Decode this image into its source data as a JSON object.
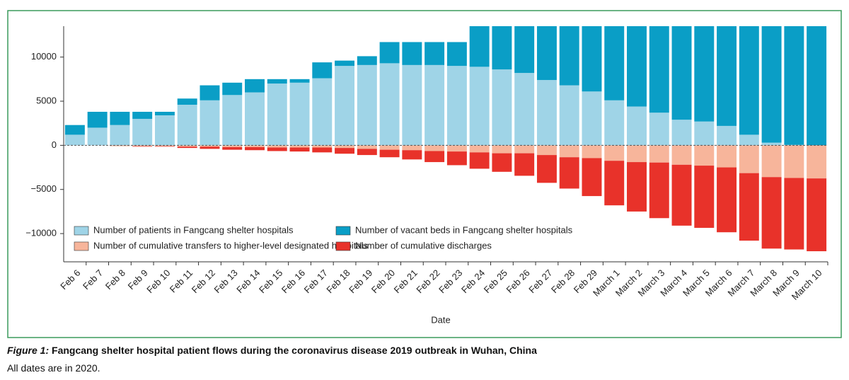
{
  "chart_data": {
    "type": "bar",
    "stacked": true,
    "x_label": "Date",
    "categories": [
      "Feb 6",
      "Feb 7",
      "Feb 8",
      "Feb 9",
      "Feb 10",
      "Feb 11",
      "Feb 12",
      "Feb 13",
      "Feb 14",
      "Feb 15",
      "Feb 16",
      "Feb 17",
      "Feb 18",
      "Feb 19",
      "Feb 20",
      "Feb 21",
      "Feb 22",
      "Feb 23",
      "Feb 24",
      "Feb 25",
      "Feb 26",
      "Feb 27",
      "Feb 28",
      "Feb 29",
      "March 1",
      "March 2",
      "March 3",
      "March 4",
      "March 5",
      "March 6",
      "March 7",
      "March 8",
      "March 9",
      "March 10"
    ],
    "series": [
      {
        "name": "Number of patients in Fangcang shelter hospitals",
        "color": "#9fd4e7",
        "values": [
          1200,
          2000,
          2300,
          3000,
          3400,
          4600,
          5100,
          5700,
          6000,
          7000,
          7100,
          7600,
          9000,
          9100,
          9300,
          9100,
          9100,
          9000,
          8900,
          8600,
          8200,
          7400,
          6800,
          6100,
          5100,
          4400,
          3700,
          2900,
          2700,
          2200,
          1200,
          300,
          50,
          0
        ]
      },
      {
        "name": "Number of vacant beds in Fangcang shelter hospitals",
        "color": "#0a9ec6",
        "values": [
          1100,
          1800,
          1500,
          800,
          400,
          700,
          1700,
          1400,
          1500,
          500,
          400,
          1800,
          600,
          1000,
          2400,
          2600,
          2600,
          2700,
          4600,
          4900,
          5300,
          6100,
          6700,
          7400,
          8400,
          9100,
          9800,
          10600,
          10800,
          11300,
          12300,
          13200,
          13450,
          13500
        ]
      },
      {
        "name": "Number of cumulative transfers to higher-level designated hospitals",
        "color": "#f7b59b",
        "values": [
          0,
          0,
          -100,
          -100,
          -100,
          -150,
          -150,
          -200,
          -200,
          -250,
          -250,
          -250,
          -300,
          -400,
          -500,
          -550,
          -650,
          -700,
          -800,
          -900,
          -900,
          -1100,
          -1350,
          -1450,
          -1750,
          -1900,
          -1950,
          -2200,
          -2300,
          -2500,
          -3150,
          -3600,
          -3700,
          -3750
        ]
      },
      {
        "name": "Number of cumulative discharges",
        "color": "#e8322a",
        "values": [
          0,
          0,
          0,
          -50,
          -50,
          -150,
          -250,
          -300,
          -350,
          -400,
          -450,
          -550,
          -650,
          -700,
          -850,
          -1050,
          -1250,
          -1550,
          -1850,
          -2100,
          -2550,
          -3150,
          -3550,
          -4300,
          -5050,
          -5600,
          -6300,
          -6900,
          -7050,
          -7350,
          -7650,
          -8100,
          -8100,
          -8250
        ]
      }
    ],
    "ylim": [
      -13200,
      13500
    ],
    "yticks": [
      {
        "value": -10000,
        "label": "−10000"
      },
      {
        "value": -5000,
        "label": "−5000"
      },
      0,
      5000,
      10000
    ],
    "caption_label": "Figure 1:",
    "caption": "Fangcang shelter hospital patient flows during the coronavirus disease 2019 outbreak in Wuhan, China",
    "note": "All dates are in 2020."
  }
}
